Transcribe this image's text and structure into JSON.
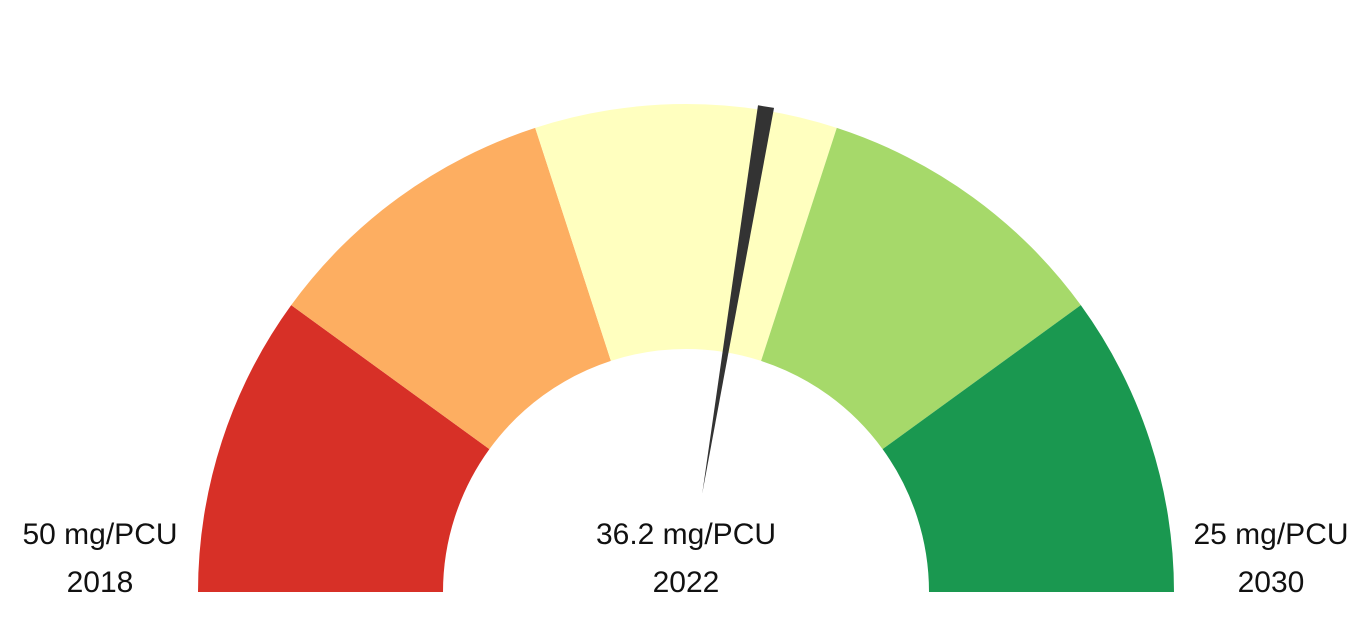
{
  "chart_data": {
    "type": "gauge",
    "min": {
      "value": 50,
      "value_label": "50 mg/PCU",
      "year": "2018"
    },
    "max": {
      "value": 25,
      "value_label": "25 mg/PCU",
      "year": "2030"
    },
    "current": {
      "value": 36.2,
      "value_label": "36.2 mg/PCU",
      "year": "2022"
    },
    "bands": [
      {
        "from": 50,
        "to": 45,
        "color": "#d73027"
      },
      {
        "from": 45,
        "to": 40,
        "color": "#fdae61"
      },
      {
        "from": 40,
        "to": 35,
        "color": "#ffffbf"
      },
      {
        "from": 35,
        "to": 30,
        "color": "#a6d96a"
      },
      {
        "from": 30,
        "to": 25,
        "color": "#1a9850"
      }
    ],
    "needle_color": "#333333"
  }
}
